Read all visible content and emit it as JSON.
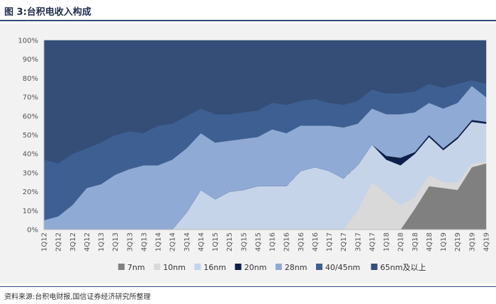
{
  "figure_title": "图 3:台积电收入构成",
  "source_note": "资料来源:台积电财报,国信证券经济研究所整理",
  "chart_data": {
    "type": "area",
    "stacked": true,
    "percent": true,
    "categories": [
      "1Q12",
      "2Q12",
      "3Q12",
      "4Q12",
      "1Q13",
      "2Q13",
      "3Q13",
      "4Q13",
      "1Q14",
      "2Q14",
      "3Q14",
      "4Q14",
      "1Q15",
      "2Q15",
      "3Q15",
      "4Q15",
      "1Q16",
      "2Q16",
      "3Q16",
      "4Q16",
      "1Q17",
      "2Q17",
      "3Q17",
      "4Q17",
      "1Q18",
      "2Q18",
      "3Q18",
      "4Q18",
      "1Q19",
      "2Q19",
      "3Q19",
      "4Q19"
    ],
    "ylim": [
      0,
      100
    ],
    "yticks": [
      "0%",
      "10%",
      "20%",
      "30%",
      "40%",
      "50%",
      "60%",
      "70%",
      "80%",
      "90%",
      "100%"
    ],
    "legend_position": "bottom",
    "series": [
      {
        "name": "7nm",
        "color": "#808080",
        "values": [
          0,
          0,
          0,
          0,
          0,
          0,
          0,
          0,
          0,
          0,
          0,
          0,
          0,
          0,
          0,
          0,
          0,
          0,
          0,
          0,
          0,
          0,
          0,
          0,
          0,
          0,
          11,
          23,
          22,
          21,
          33,
          35
        ]
      },
      {
        "name": "10nm",
        "color": "#d9d9d9",
        "values": [
          0,
          0,
          0,
          0,
          0,
          0,
          0,
          0,
          0,
          0,
          0,
          0,
          0,
          0,
          0,
          0,
          0,
          0,
          0,
          0,
          0,
          0,
          10,
          25,
          19,
          13,
          6,
          6,
          3,
          4,
          2,
          1
        ]
      },
      {
        "name": "16nm",
        "color": "#c5d4e9",
        "values": [
          0,
          0,
          0,
          0,
          0,
          0,
          0,
          0,
          0,
          0,
          9,
          21,
          16,
          20,
          21,
          23,
          23,
          23,
          31,
          33,
          31,
          27,
          24,
          20,
          18,
          21,
          23,
          20,
          17,
          23,
          22,
          20
        ]
      },
      {
        "name": "20nm",
        "color": "#0d1f4a",
        "values": [
          0,
          0,
          0,
          0,
          0,
          0,
          0,
          0,
          0,
          0,
          0,
          0,
          0,
          0,
          0,
          0,
          0,
          0,
          0,
          0,
          0,
          0,
          0,
          0,
          2,
          4,
          1,
          1,
          1,
          1,
          1,
          1
        ]
      },
      {
        "name": "28nm",
        "color": "#8faad4",
        "values": [
          5,
          7,
          13,
          22,
          24,
          29,
          32,
          34,
          34,
          37,
          34,
          30,
          30,
          27,
          27,
          26,
          30,
          28,
          24,
          22,
          24,
          27,
          22,
          19,
          22,
          23,
          21,
          17,
          21,
          18,
          18,
          13
        ]
      },
      {
        "name": "40/45nm",
        "color": "#3e5f92",
        "values": [
          32,
          28,
          27,
          21,
          22,
          21,
          20,
          17,
          21,
          19,
          17,
          13,
          15,
          14,
          14,
          14,
          14,
          15,
          13,
          14,
          12,
          12,
          12,
          10,
          11,
          11,
          11,
          10,
          11,
          10,
          3,
          7
        ]
      },
      {
        "name": "65nm及以上",
        "color": "#344e78",
        "values": [
          63,
          65,
          60,
          57,
          54,
          50,
          48,
          49,
          45,
          44,
          40,
          36,
          39,
          39,
          38,
          37,
          33,
          34,
          32,
          31,
          33,
          34,
          32,
          26,
          28,
          28,
          27,
          23,
          25,
          23,
          21,
          23
        ]
      }
    ]
  }
}
